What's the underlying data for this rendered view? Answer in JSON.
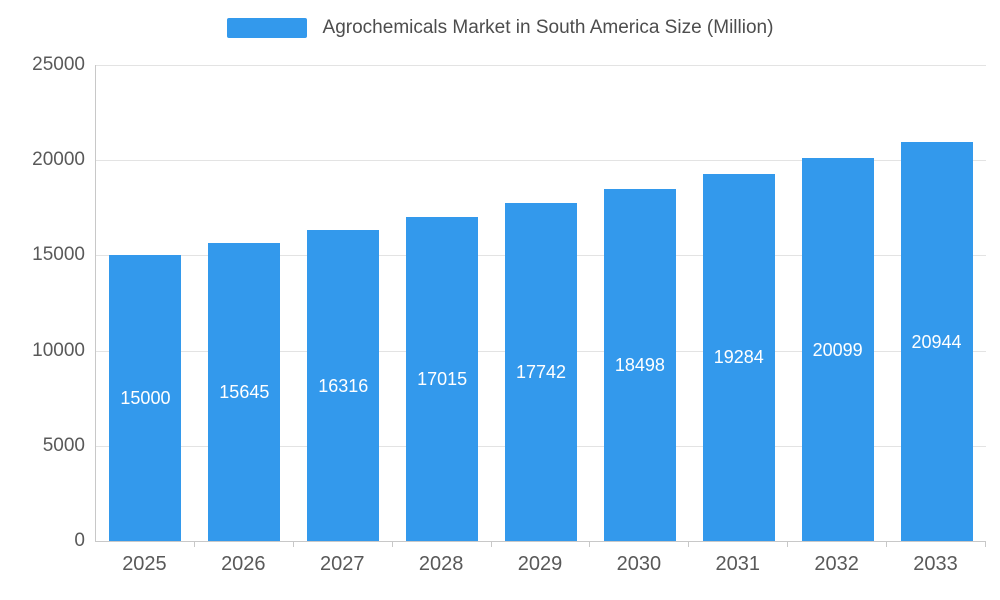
{
  "chart_data": {
    "type": "bar",
    "title": "Agrochemicals Market in South America Size (Million)",
    "categories": [
      "2025",
      "2026",
      "2027",
      "2028",
      "2029",
      "2030",
      "2031",
      "2032",
      "2033"
    ],
    "values": [
      15000,
      15645,
      16316,
      17015,
      17742,
      18498,
      19284,
      20099,
      20944
    ],
    "xlabel": "",
    "ylabel": "",
    "ylim": [
      0,
      25000
    ],
    "yticks": [
      0,
      5000,
      10000,
      15000,
      20000,
      25000
    ],
    "grid": true,
    "legend_position": "top",
    "bar_color": "#3399ec",
    "bar_label_color": "#ffffff",
    "axis_text_color": "#595959",
    "title_color": "#4d4d4d"
  }
}
